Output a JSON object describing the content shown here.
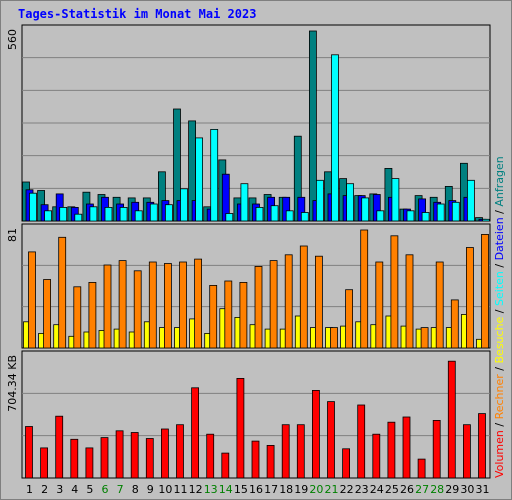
{
  "chart_data": {
    "type": "bar",
    "title": "Tages-Statistik im Monat Mai 2023",
    "x": [
      "1",
      "2",
      "3",
      "4",
      "5",
      "6",
      "7",
      "8",
      "9",
      "10",
      "11",
      "12",
      "13",
      "14",
      "15",
      "16",
      "17",
      "18",
      "19",
      "20",
      "21",
      "22",
      "23",
      "24",
      "25",
      "26",
      "27",
      "28",
      "29",
      "30",
      "31"
    ],
    "weekend_days": [
      "6",
      "7",
      "13",
      "14",
      "20",
      "21",
      "27",
      "28"
    ],
    "panels": [
      {
        "scale_label": "560",
        "ymax": 560,
        "series": [
          {
            "name": "Anfragen",
            "color": "#008080",
            "values": [
              115,
              90,
              42,
              42,
              85,
              78,
              70,
              68,
              68,
              145,
              330,
              295,
              42,
              180,
              68,
              68,
              78,
              70,
              250,
              560,
              145,
              125,
              75,
              80,
              155,
              35,
              75,
              70,
              102,
              170,
              10
            ]
          },
          {
            "name": "Dateien",
            "color": "#0000ff",
            "values": [
              92,
              48,
              80,
              40,
              50,
              70,
              50,
              55,
              55,
              60,
              60,
              60,
              35,
              138,
              50,
              50,
              70,
              70,
              70,
              60,
              80,
              75,
              75,
              78,
              70,
              35,
              65,
              55,
              60,
              70,
              5
            ]
          },
          {
            "name": "Seiten",
            "color": "#00ffff",
            "values": [
              82,
              30,
              40,
              20,
              42,
              40,
              40,
              30,
              50,
              48,
              95,
              245,
              270,
              22,
              110,
              40,
              45,
              30,
              25,
              120,
              490,
              110,
              68,
              30,
              125,
              30,
              25,
              50,
              55,
              120,
              5
            ]
          }
        ]
      },
      {
        "scale_label": "81",
        "ymax": 81,
        "series": [
          {
            "name": "Besuche",
            "color": "#ffff00",
            "values": [
              18,
              10,
              16,
              8,
              11,
              12,
              13,
              11,
              18,
              14,
              14,
              20,
              10,
              27,
              21,
              16,
              13,
              13,
              22,
              14,
              14,
              15,
              18,
              16,
              22,
              15,
              13,
              14,
              14,
              23,
              6
            ]
          },
          {
            "name": "Rechner",
            "color": "#ff8000",
            "values": [
              66,
              47,
              76,
              42,
              45,
              57,
              60,
              53,
              59,
              58,
              59,
              61,
              43,
              46,
              45,
              56,
              60,
              64,
              70,
              63,
              14,
              40,
              81,
              59,
              77,
              64,
              14,
              59,
              33,
              69,
              78
            ]
          }
        ]
      },
      {
        "scale_label": "704.34 KB",
        "ymax": 704.34,
        "series": [
          {
            "name": "Volumen",
            "color": "#ff0000",
            "values": [
              300,
              175,
              360,
              225,
              175,
              235,
              275,
              265,
              230,
              285,
              310,
              525,
              255,
              145,
              580,
              215,
              190,
              310,
              310,
              510,
              445,
              170,
              425,
              255,
              325,
              355,
              110,
              335,
              680,
              310,
              375
            ]
          }
        ]
      }
    ],
    "right_legend": [
      {
        "text": "Volumen",
        "color": "#ff0000"
      },
      {
        "text": "Rechner",
        "color": "#ff8000"
      },
      {
        "text": "Besuche",
        "color": "#ffff00"
      },
      {
        "text": "Seiten",
        "color": "#00ffff"
      },
      {
        "text": "Dateien",
        "color": "#0000ff"
      },
      {
        "text": "Anfragen",
        "color": "#008080"
      }
    ]
  }
}
